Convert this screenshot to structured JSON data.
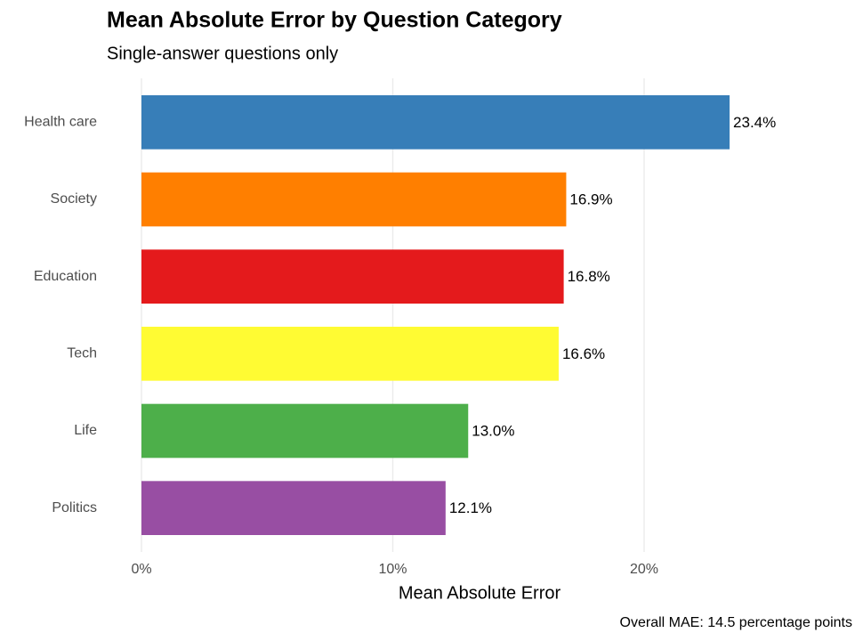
{
  "chart_data": {
    "type": "bar",
    "orientation": "horizontal",
    "title": "Mean Absolute Error by Question Category",
    "subtitle": "Single-answer questions only",
    "x_label": "Mean Absolute Error",
    "caption": "Overall MAE: 14.5 percentage points",
    "categories": [
      "Health care",
      "Society",
      "Education",
      "Tech",
      "Life",
      "Politics"
    ],
    "values": [
      23.4,
      16.9,
      16.8,
      16.6,
      13.0,
      12.1
    ],
    "value_labels": [
      "23.4%",
      "16.9%",
      "16.8%",
      "16.6%",
      "13.0%",
      "12.1%"
    ],
    "colors": [
      "#377eb8",
      "#ff7f00",
      "#e41a1c",
      "#fffb33",
      "#4daf4a",
      "#984ea3"
    ],
    "xlim": [
      0,
      28.3
    ],
    "xticks": [
      {
        "value": 0,
        "label": "0%"
      },
      {
        "value": 10,
        "label": "10%"
      },
      {
        "value": 20,
        "label": "20%"
      }
    ],
    "grid": true
  }
}
